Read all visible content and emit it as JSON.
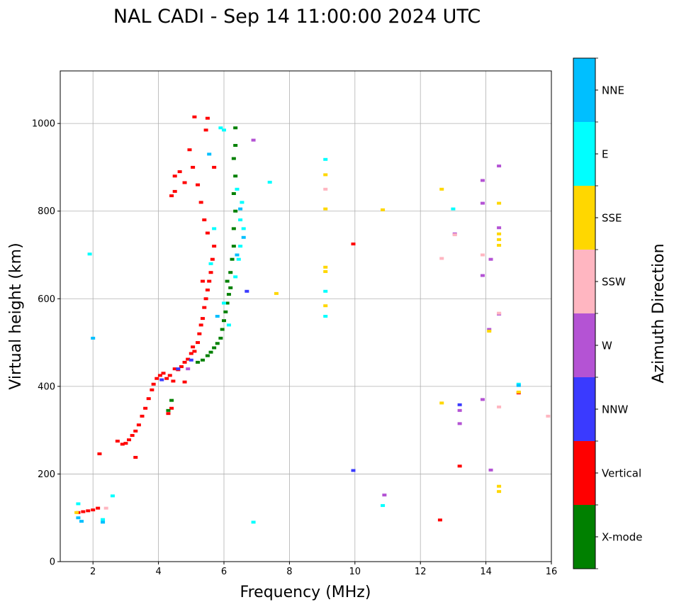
{
  "title": "NAL CADI - Sep 14 11:00:00 2024 UTC",
  "chart_data": {
    "type": "scatter",
    "title": "NAL CADI - Sep 14 11:00:00 2024 UTC",
    "xlabel": "Frequency (MHz)",
    "ylabel": "Virtual height (km)",
    "xlim": [
      1,
      16
    ],
    "ylim": [
      0,
      1120
    ],
    "xticks": [
      2,
      4,
      6,
      8,
      10,
      12,
      14,
      16
    ],
    "yticks": [
      0,
      200,
      400,
      600,
      800,
      1000
    ],
    "grid": true,
    "colorbar": {
      "label": "Azimuth Direction",
      "categories": [
        {
          "name": "X-mode",
          "color": "#008000"
        },
        {
          "name": "Vertical",
          "color": "#ff0000"
        },
        {
          "name": "NNW",
          "color": "#3a3aff"
        },
        {
          "name": "W",
          "color": "#b453d4"
        },
        {
          "name": "SSW",
          "color": "#ffb6c1"
        },
        {
          "name": "SSE",
          "color": "#ffd700"
        },
        {
          "name": "E",
          "color": "#00ffff"
        },
        {
          "name": "NNE",
          "color": "#00bfff"
        }
      ]
    },
    "series": [
      {
        "name": "Vertical",
        "points": [
          [
            1.55,
            112
          ],
          [
            1.7,
            114
          ],
          [
            1.85,
            116
          ],
          [
            2.0,
            118
          ],
          [
            2.15,
            122
          ],
          [
            2.2,
            246
          ],
          [
            2.75,
            275
          ],
          [
            2.9,
            268
          ],
          [
            3.0,
            270
          ],
          [
            3.1,
            278
          ],
          [
            3.2,
            288
          ],
          [
            3.3,
            298
          ],
          [
            3.4,
            312
          ],
          [
            3.5,
            332
          ],
          [
            3.6,
            350
          ],
          [
            3.7,
            372
          ],
          [
            3.8,
            392
          ],
          [
            3.85,
            405
          ],
          [
            3.95,
            418
          ],
          [
            4.05,
            425
          ],
          [
            4.15,
            430
          ],
          [
            4.25,
            418
          ],
          [
            4.35,
            425
          ],
          [
            4.45,
            412
          ],
          [
            4.5,
            440
          ],
          [
            4.6,
            438
          ],
          [
            4.7,
            445
          ],
          [
            4.8,
            455
          ],
          [
            4.9,
            462
          ],
          [
            5.0,
            475
          ],
          [
            5.05,
            490
          ],
          [
            5.1,
            480
          ],
          [
            5.2,
            500
          ],
          [
            5.25,
            520
          ],
          [
            5.3,
            540
          ],
          [
            5.35,
            555
          ],
          [
            5.4,
            580
          ],
          [
            5.45,
            600
          ],
          [
            5.5,
            620
          ],
          [
            5.55,
            640
          ],
          [
            5.6,
            660
          ],
          [
            5.65,
            690
          ],
          [
            5.7,
            720
          ],
          [
            5.5,
            750
          ],
          [
            5.4,
            780
          ],
          [
            5.3,
            820
          ],
          [
            5.2,
            860
          ],
          [
            5.05,
            900
          ],
          [
            4.95,
            940
          ],
          [
            5.1,
            1015
          ],
          [
            5.5,
            1012
          ],
          [
            5.45,
            985
          ],
          [
            4.4,
            835
          ],
          [
            4.5,
            845
          ],
          [
            4.8,
            865
          ],
          [
            4.65,
            890
          ],
          [
            4.5,
            880
          ],
          [
            5.7,
            900
          ],
          [
            4.4,
            350
          ],
          [
            4.3,
            338
          ],
          [
            4.8,
            410
          ],
          [
            5.35,
            640
          ],
          [
            3.3,
            238
          ],
          [
            9.95,
            725
          ],
          [
            12.6,
            95
          ],
          [
            13.2,
            218
          ],
          [
            15.0,
            385
          ]
        ]
      },
      {
        "name": "X-mode",
        "points": [
          [
            5.2,
            455
          ],
          [
            5.35,
            460
          ],
          [
            5.5,
            470
          ],
          [
            5.6,
            478
          ],
          [
            5.7,
            488
          ],
          [
            5.8,
            498
          ],
          [
            5.9,
            510
          ],
          [
            5.95,
            530
          ],
          [
            6.0,
            550
          ],
          [
            6.05,
            570
          ],
          [
            6.1,
            590
          ],
          [
            6.15,
            610
          ],
          [
            6.1,
            640
          ],
          [
            6.2,
            660
          ],
          [
            6.25,
            690
          ],
          [
            6.3,
            720
          ],
          [
            6.3,
            760
          ],
          [
            6.35,
            800
          ],
          [
            6.3,
            840
          ],
          [
            6.35,
            880
          ],
          [
            6.3,
            920
          ],
          [
            6.35,
            950
          ],
          [
            6.35,
            990
          ],
          [
            4.4,
            368
          ],
          [
            4.3,
            345
          ],
          [
            6.2,
            625
          ]
        ]
      },
      {
        "name": "NNW",
        "points": [
          [
            4.1,
            415
          ],
          [
            4.6,
            440
          ],
          [
            5.0,
            460
          ],
          [
            9.95,
            208
          ],
          [
            13.2,
            358
          ],
          [
            6.7,
            617
          ]
        ]
      },
      {
        "name": "W",
        "points": [
          [
            4.9,
            440
          ],
          [
            13.2,
            315
          ],
          [
            13.2,
            345
          ],
          [
            14.1,
            530
          ],
          [
            14.4,
            565
          ],
          [
            14.4,
            762
          ],
          [
            14.4,
            903
          ],
          [
            13.9,
            870
          ],
          [
            13.9,
            818
          ],
          [
            13.9,
            653
          ],
          [
            14.15,
            690
          ],
          [
            14.15,
            209
          ],
          [
            13.9,
            370
          ],
          [
            13.05,
            748
          ],
          [
            10.9,
            152
          ],
          [
            6.9,
            962
          ]
        ]
      },
      {
        "name": "SSW",
        "points": [
          [
            9.1,
            850
          ],
          [
            12.65,
            692
          ],
          [
            13.05,
            746
          ],
          [
            13.9,
            700
          ],
          [
            14.4,
            567
          ],
          [
            14.4,
            353
          ],
          [
            15.9,
            332
          ],
          [
            2.4,
            122
          ]
        ]
      },
      {
        "name": "SSE",
        "points": [
          [
            9.1,
            805
          ],
          [
            9.1,
            883
          ],
          [
            9.1,
            672
          ],
          [
            9.1,
            662
          ],
          [
            9.1,
            584
          ],
          [
            10.85,
            803
          ],
          [
            12.65,
            850
          ],
          [
            12.65,
            362
          ],
          [
            14.4,
            818
          ],
          [
            14.4,
            748
          ],
          [
            14.4,
            735
          ],
          [
            14.4,
            722
          ],
          [
            14.4,
            172
          ],
          [
            14.4,
            160
          ],
          [
            14.1,
            526
          ],
          [
            15.0,
            387
          ],
          [
            7.6,
            612
          ],
          [
            1.5,
            112
          ]
        ]
      },
      {
        "name": "E",
        "points": [
          [
            1.55,
            132
          ],
          [
            2.3,
            96
          ],
          [
            2.6,
            150
          ],
          [
            5.9,
            990
          ],
          [
            6.4,
            850
          ],
          [
            6.55,
            820
          ],
          [
            6.5,
            780
          ],
          [
            6.6,
            760
          ],
          [
            6.5,
            720
          ],
          [
            6.45,
            690
          ],
          [
            6.35,
            650
          ],
          [
            6.15,
            540
          ],
          [
            6.0,
            590
          ],
          [
            5.6,
            680
          ],
          [
            5.7,
            760
          ],
          [
            6.9,
            90
          ],
          [
            9.1,
            918
          ],
          [
            9.1,
            617
          ],
          [
            9.1,
            560
          ],
          [
            10.85,
            128
          ],
          [
            13.0,
            805
          ],
          [
            15.0,
            405
          ],
          [
            1.9,
            702
          ],
          [
            6.0,
            985
          ],
          [
            7.4,
            866
          ]
        ]
      },
      {
        "name": "NNE",
        "points": [
          [
            1.55,
            100
          ],
          [
            1.65,
            92
          ],
          [
            2.3,
            90
          ],
          [
            5.55,
            930
          ],
          [
            6.5,
            805
          ],
          [
            6.6,
            740
          ],
          [
            6.4,
            700
          ],
          [
            5.8,
            560
          ],
          [
            15.0,
            402
          ],
          [
            2.0,
            510
          ]
        ]
      }
    ]
  }
}
